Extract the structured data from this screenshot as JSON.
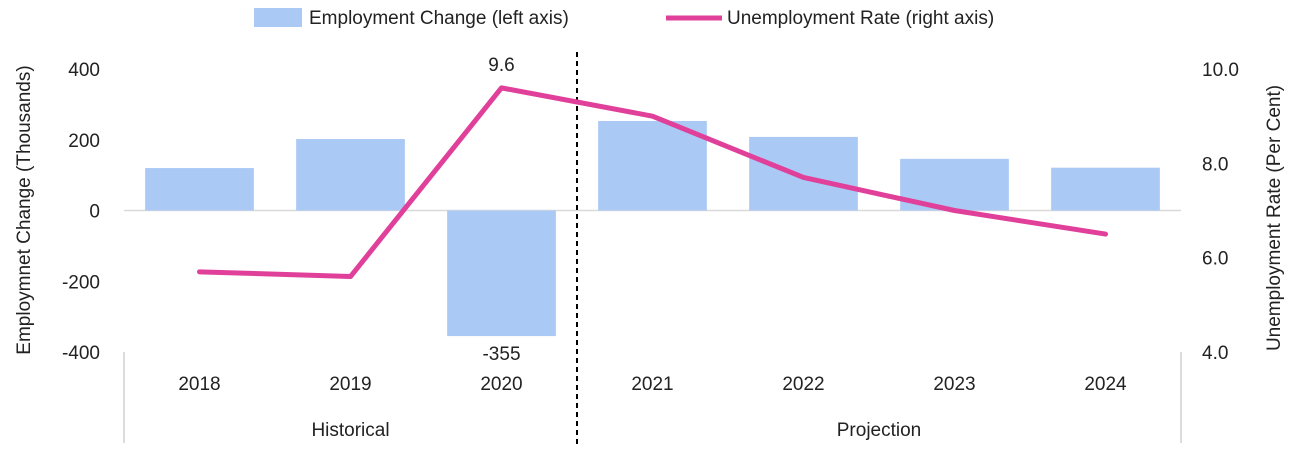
{
  "chart_data": {
    "type": "bar",
    "categories": [
      "2018",
      "2019",
      "2020",
      "2021",
      "2022",
      "2023",
      "2024"
    ],
    "groups": [
      {
        "label": "Historical",
        "categories": [
          "2018",
          "2019",
          "2020"
        ]
      },
      {
        "label": "Projection",
        "categories": [
          "2021",
          "2022",
          "2023",
          "2024"
        ]
      }
    ],
    "series": [
      {
        "name": "Employment Change (left axis)",
        "type": "bar",
        "axis": "left",
        "values": [
          120,
          202,
          -355,
          253,
          208,
          146,
          121
        ],
        "color": "#aac9f5"
      },
      {
        "name": "Unemployment Rate (right axis)",
        "type": "line",
        "axis": "right",
        "values": [
          5.7,
          5.6,
          9.6,
          9.0,
          7.7,
          7.0,
          6.5
        ],
        "color": "#e0409a"
      }
    ],
    "data_labels": [
      {
        "series": "Unemployment Rate (right axis)",
        "category": "2020",
        "text": "9.6"
      },
      {
        "series": "Employment Change (left axis)",
        "category": "2020",
        "text": "-355"
      }
    ],
    "ylabel_left": "Employmnet Change (Thousands)",
    "ylabel_right": "Unemployment Rate (Per Cent)",
    "ylim_left": [
      -400,
      400
    ],
    "yticks_left": [
      "400",
      "200",
      "0",
      "-200",
      "-400"
    ],
    "ylim_right": [
      4.0,
      10.0
    ],
    "yticks_right": [
      "10.0",
      "8.0",
      "6.0",
      "4.0"
    ],
    "divider_after_category": "2020",
    "legend_position": "top",
    "grid": false
  }
}
